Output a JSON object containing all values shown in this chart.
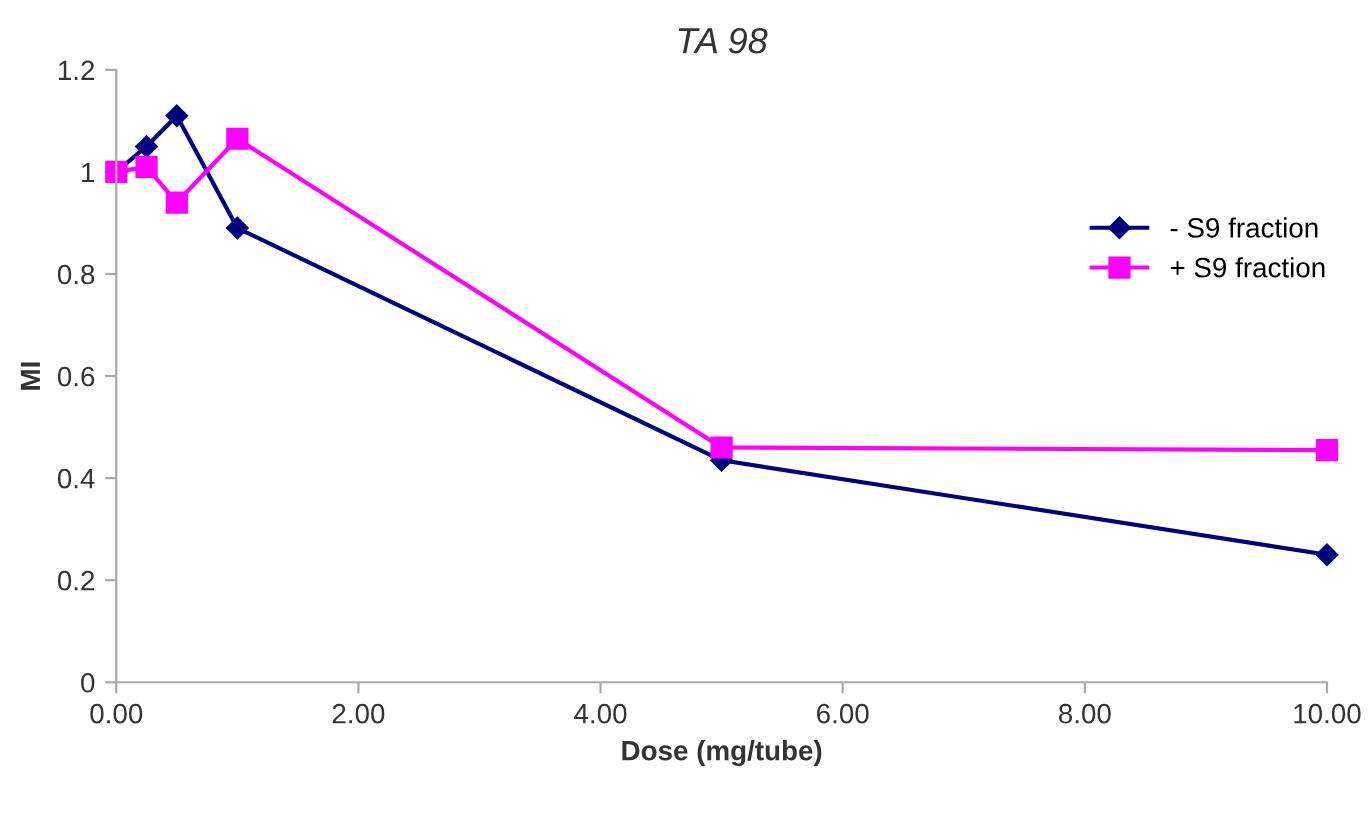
{
  "chart_data": {
    "type": "line",
    "title": "TA 98",
    "xlabel": "Dose (mg/tube)",
    "ylabel": "MI",
    "series": [
      {
        "name": "- S9 fraction",
        "color": "#000080",
        "marker": "diamond",
        "x": [
          0,
          0.25,
          0.5,
          1,
          5,
          10
        ],
        "values": [
          1.0,
          1.05,
          1.11,
          0.89,
          0.435,
          0.25
        ]
      },
      {
        "name": "+ S9 fraction",
        "color": "#ff00ff",
        "marker": "square",
        "x": [
          0,
          0.25,
          0.5,
          1,
          5,
          10
        ],
        "values": [
          1.0,
          1.01,
          0.94,
          1.065,
          0.46,
          0.455
        ]
      }
    ],
    "xlim": [
      0,
      10
    ],
    "xticks": [
      {
        "value": 0,
        "label": "0.00"
      },
      {
        "value": 2,
        "label": "2.00"
      },
      {
        "value": 4,
        "label": "4.00"
      },
      {
        "value": 6,
        "label": "6.00"
      },
      {
        "value": 8,
        "label": "8.00"
      },
      {
        "value": 10,
        "label": "10.00"
      }
    ],
    "ylim": [
      0,
      1.2
    ],
    "yticks": [
      0,
      0.2,
      0.4,
      0.6,
      0.8,
      1,
      1.2
    ],
    "grid": false,
    "legend": "top right"
  }
}
